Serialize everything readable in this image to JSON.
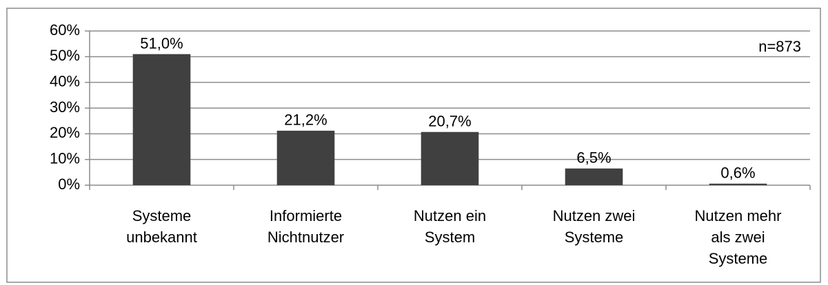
{
  "chart_data": {
    "type": "bar",
    "categories": [
      "Systeme\nunbekannt",
      "Informierte\nNichtnutzer",
      "Nutzen ein\nSystem",
      "Nutzen zwei\nSysteme",
      "Nutzen mehr\nals zwei\nSysteme"
    ],
    "values": [
      51.0,
      21.2,
      20.7,
      6.5,
      0.6
    ],
    "value_labels": [
      "51,0%",
      "21,2%",
      "20,7%",
      "6,5%",
      "0,6%"
    ],
    "color": "#404040",
    "ylim": [
      0,
      60
    ],
    "yticks": [
      {
        "value": 0,
        "label": "0%"
      },
      {
        "value": 10,
        "label": "10%"
      },
      {
        "value": 20,
        "label": "20%"
      },
      {
        "value": 30,
        "label": "30%"
      },
      {
        "value": 40,
        "label": "40%"
      },
      {
        "value": 50,
        "label": "50%"
      },
      {
        "value": 60,
        "label": "60%"
      }
    ],
    "grid": true,
    "annotation": "n=873"
  }
}
